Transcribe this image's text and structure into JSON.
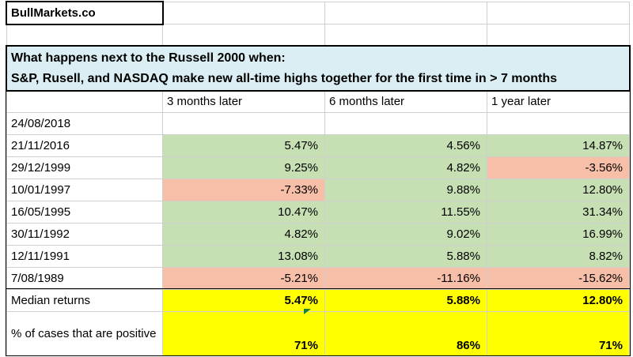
{
  "colors": {
    "blue": "#DAEEF3",
    "green": "#C6E0B4",
    "red": "#F7BFA8",
    "yellow": "#FFFF00",
    "gridline": "#CFCFCF",
    "flag_green": "#188038"
  },
  "brand": "BullMarkets.co",
  "header": {
    "line1": "What happens next to the Russell 2000 when:",
    "line2": "S&P, Rusell, and NASDAQ make new all-time highs together for the first time in > 7 months"
  },
  "columns": [
    "3 months later",
    "6 months later",
    "1 year later"
  ],
  "rows": [
    {
      "date": "24/08/2018",
      "values": [
        "",
        "",
        ""
      ],
      "fills": [
        "none",
        "none",
        "none"
      ]
    },
    {
      "date": "21/11/2016",
      "values": [
        "5.47%",
        "4.56%",
        "14.87%"
      ],
      "fills": [
        "green",
        "green",
        "green"
      ]
    },
    {
      "date": "29/12/1999",
      "values": [
        "9.25%",
        "4.82%",
        "-3.56%"
      ],
      "fills": [
        "green",
        "green",
        "red"
      ]
    },
    {
      "date": "10/01/1997",
      "values": [
        "-7.33%",
        "9.88%",
        "12.80%"
      ],
      "fills": [
        "red",
        "green",
        "green"
      ]
    },
    {
      "date": "16/05/1995",
      "values": [
        "10.47%",
        "11.55%",
        "31.34%"
      ],
      "fills": [
        "green",
        "green",
        "green"
      ]
    },
    {
      "date": "30/11/1992",
      "values": [
        "4.82%",
        "9.02%",
        "16.99%"
      ],
      "fills": [
        "green",
        "green",
        "green"
      ]
    },
    {
      "date": "12/11/1991",
      "values": [
        "13.08%",
        "5.88%",
        "8.82%"
      ],
      "fills": [
        "green",
        "green",
        "green"
      ]
    },
    {
      "date": "7/08/1989",
      "values": [
        "-5.21%",
        "-11.16%",
        "-15.62%"
      ],
      "fills": [
        "red",
        "red",
        "red"
      ]
    }
  ],
  "summary": {
    "median_label": "Median returns",
    "median_values": [
      "5.47%",
      "5.88%",
      "12.80%"
    ],
    "positive_label": "% of cases that are positive",
    "positive_values": [
      "71%",
      "86%",
      "71%"
    ]
  }
}
